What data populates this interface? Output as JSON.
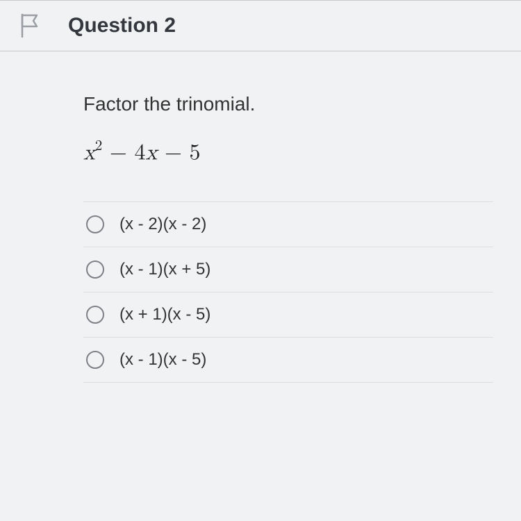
{
  "header": {
    "title": "Question 2"
  },
  "question": {
    "prompt": "Factor the trinomial.",
    "expression_html": "<span class='var'>x</span><sup>2</sup> &minus; 4<span class='var'>x</span> &minus; 5"
  },
  "choices": [
    {
      "label": "(x - 2)(x - 2)"
    },
    {
      "label": "(x - 1)(x + 5)"
    },
    {
      "label": "(x + 1)(x - 5)"
    },
    {
      "label": "(x - 1)(x - 5)"
    }
  ],
  "colors": {
    "page_bg": "#f1f2f3",
    "border": "#c6c8ca",
    "text": "#2d3036",
    "radio_border": "#7d8187"
  }
}
